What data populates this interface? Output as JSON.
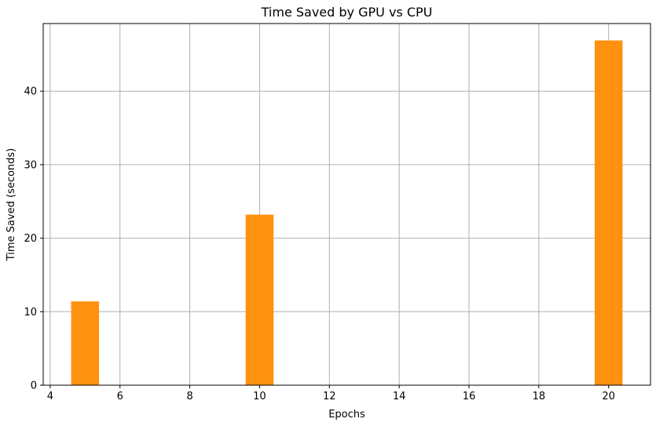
{
  "chart_data": {
    "type": "bar",
    "title": "Time Saved by GPU vs CPU",
    "xlabel": "Epochs",
    "ylabel": "Time Saved (seconds)",
    "x": [
      5,
      10,
      20
    ],
    "values": [
      11.4,
      23.2,
      46.9
    ],
    "bar_width": 0.8,
    "xlim": [
      3.8,
      21.2
    ],
    "ylim": [
      0,
      49.2
    ],
    "xticks": [
      4,
      6,
      8,
      10,
      12,
      14,
      16,
      18,
      20
    ],
    "yticks": [
      0,
      10,
      20,
      30,
      40
    ],
    "grid": true,
    "colors": {
      "bar": "#ff9110",
      "grid": "#b0b0b0",
      "axis": "#000000"
    }
  }
}
